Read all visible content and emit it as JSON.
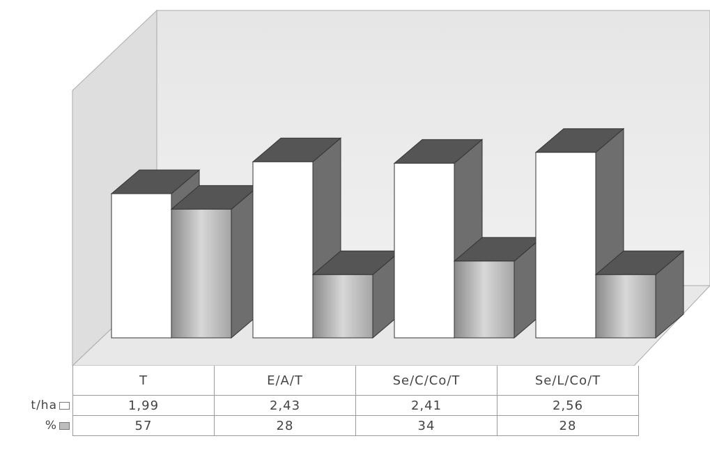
{
  "chart_data": {
    "type": "bar",
    "categories": [
      "T",
      "E/A/T",
      "Se/C/Co/T",
      "Se/L/Co/T"
    ],
    "series": [
      {
        "name": "t/ha",
        "values": [
          1.99,
          2.43,
          2.41,
          2.56
        ],
        "display": [
          "1,99",
          "2,43",
          "2,41",
          "2,56"
        ],
        "color": "#ffffff"
      },
      {
        "name": "%",
        "values": [
          57,
          28,
          34,
          28
        ],
        "display": [
          "57",
          "28",
          "34",
          "28"
        ],
        "color": "#b0b0b0"
      }
    ],
    "style": "3d-clustered-column",
    "legend_placement": "data-table-rows",
    "grid": false
  }
}
